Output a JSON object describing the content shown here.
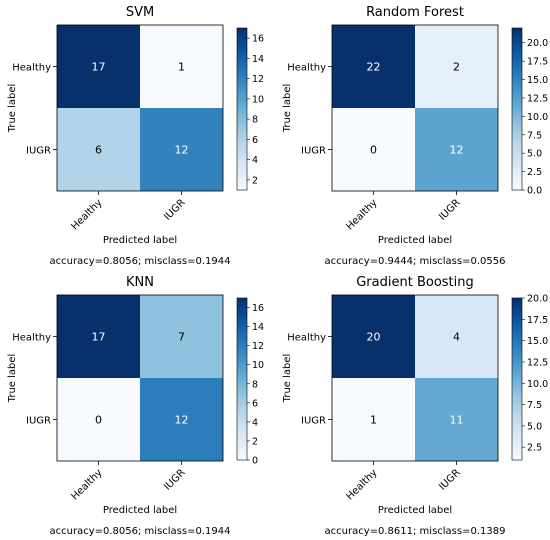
{
  "chart_data": [
    {
      "type": "heatmap",
      "title": "SVM",
      "xlabel": "Predicted label",
      "ylabel": "True label",
      "x_categories": [
        "Healthy",
        "IUGR"
      ],
      "y_categories": [
        "Healthy",
        "IUGR"
      ],
      "values": [
        [
          17,
          1
        ],
        [
          6,
          12
        ]
      ],
      "colormap": "Blues",
      "colorbar": {
        "min": 1,
        "max": 17,
        "ticks": [
          2,
          4,
          6,
          8,
          10,
          12,
          14,
          16
        ]
      },
      "footer": "accuracy=0.8056; misclass=0.1944"
    },
    {
      "type": "heatmap",
      "title": "Random Forest",
      "xlabel": "Predicted label",
      "ylabel": "True label",
      "x_categories": [
        "Healthy",
        "IUGR"
      ],
      "y_categories": [
        "Healthy",
        "IUGR"
      ],
      "values": [
        [
          22,
          2
        ],
        [
          0,
          12
        ]
      ],
      "colormap": "Blues",
      "colorbar": {
        "min": 0,
        "max": 22,
        "ticks": [
          0.0,
          2.5,
          5.0,
          7.5,
          10.0,
          12.5,
          15.0,
          17.5,
          20.0
        ]
      },
      "footer": "accuracy=0.9444; misclass=0.0556"
    },
    {
      "type": "heatmap",
      "title": "KNN",
      "xlabel": "Predicted label",
      "ylabel": "True label",
      "x_categories": [
        "Healthy",
        "IUGR"
      ],
      "y_categories": [
        "Healthy",
        "IUGR"
      ],
      "values": [
        [
          17,
          7
        ],
        [
          0,
          12
        ]
      ],
      "colormap": "Blues",
      "colorbar": {
        "min": 0,
        "max": 17,
        "ticks": [
          0,
          2,
          4,
          6,
          8,
          10,
          12,
          14,
          16
        ]
      },
      "footer": "accuracy=0.8056; misclass=0.1944"
    },
    {
      "type": "heatmap",
      "title": "Gradient Boosting",
      "xlabel": "Predicted label",
      "ylabel": "True label",
      "x_categories": [
        "Healthy",
        "IUGR"
      ],
      "y_categories": [
        "Healthy",
        "IUGR"
      ],
      "values": [
        [
          20,
          4
        ],
        [
          1,
          11
        ]
      ],
      "colormap": "Blues",
      "colorbar": {
        "min": 1,
        "max": 20,
        "ticks": [
          2.5,
          5.0,
          7.5,
          10.0,
          12.5,
          15.0,
          17.5,
          20.0
        ]
      },
      "footer": "accuracy=0.8611; misclass=0.1389"
    }
  ]
}
